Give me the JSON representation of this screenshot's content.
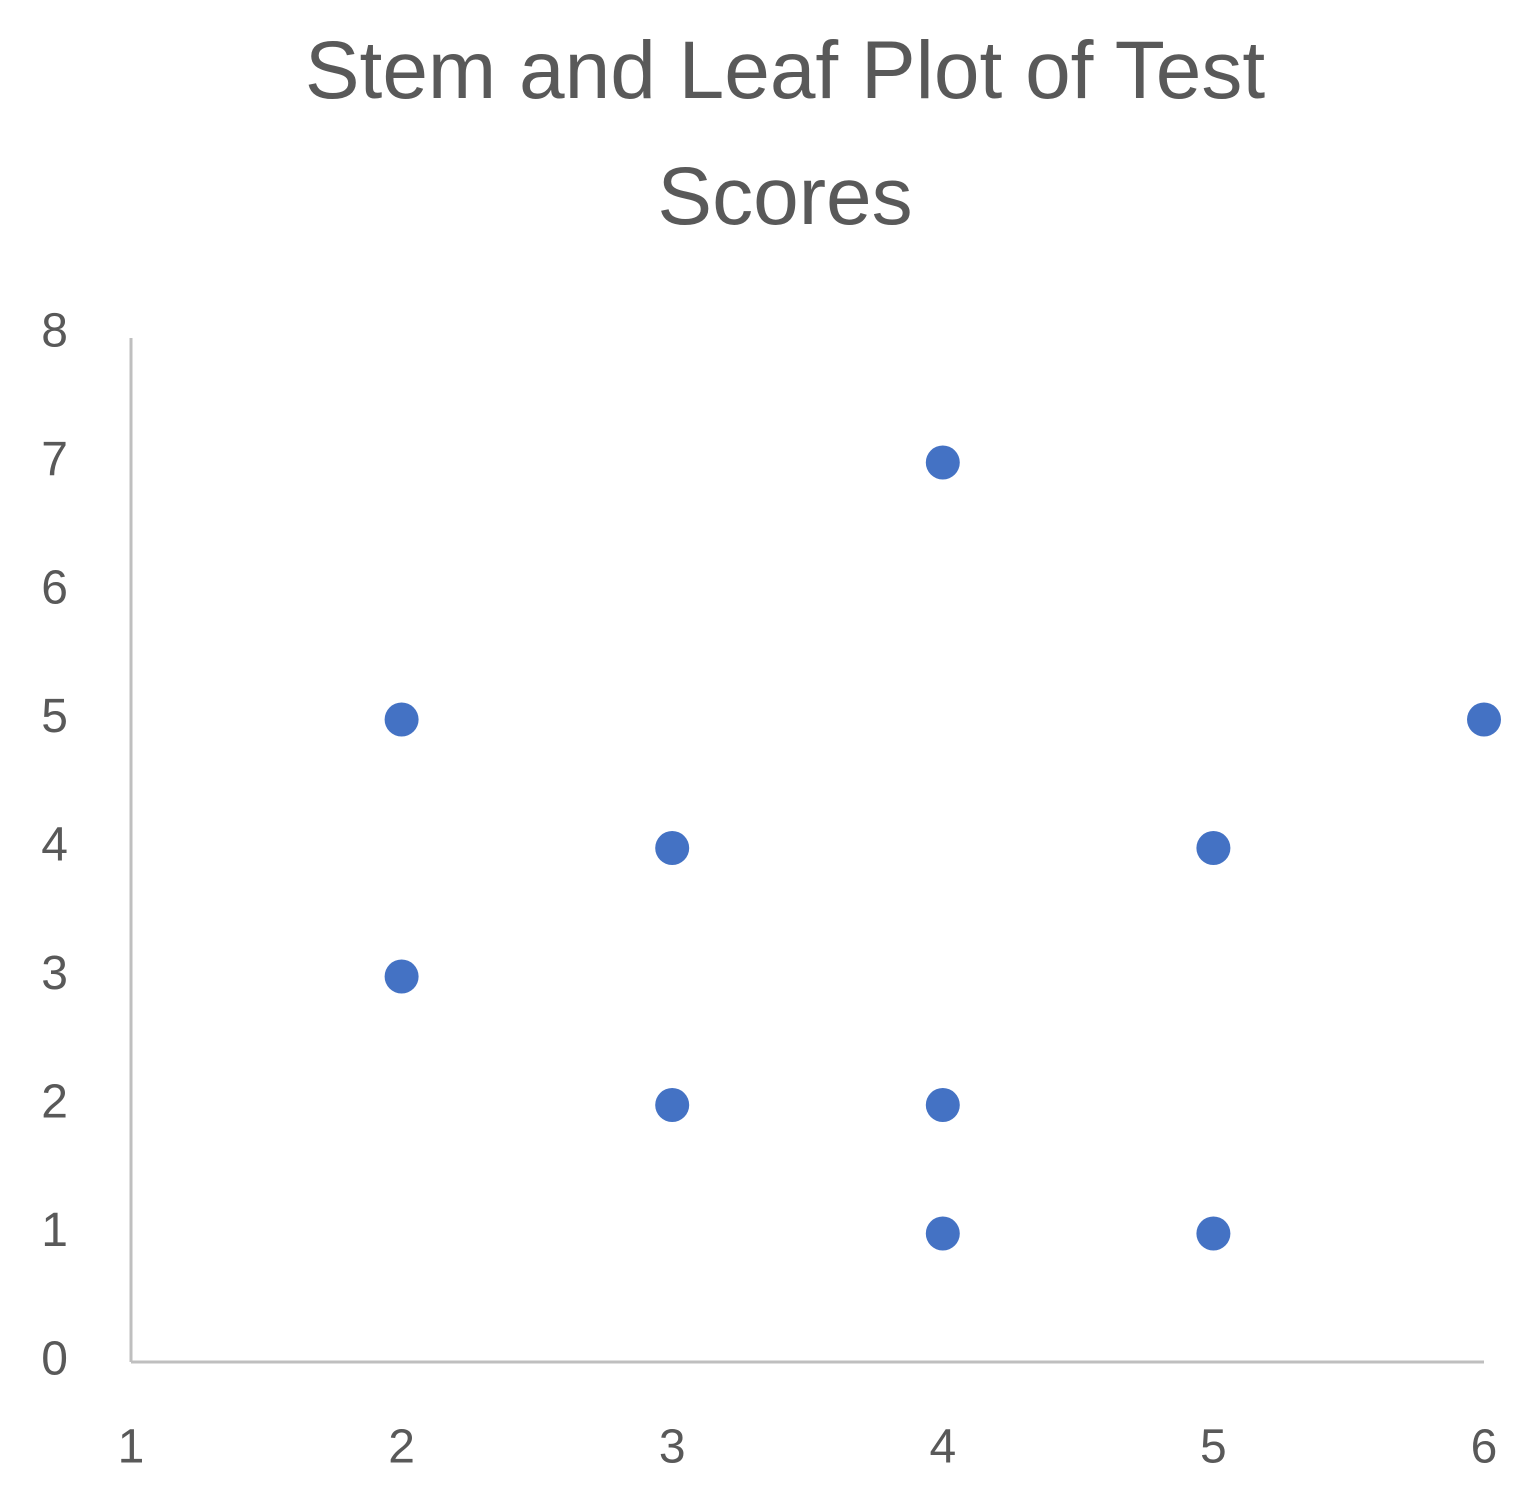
{
  "chart_data": {
    "type": "scatter",
    "title": "Stem and Leaf Plot of Test Scores",
    "x": [
      2,
      2,
      3,
      3,
      4,
      4,
      4,
      5,
      5,
      6
    ],
    "values": [
      5,
      3,
      4,
      2,
      7,
      2,
      1,
      4,
      1,
      5
    ],
    "color": "#4472c4",
    "xlim": [
      1,
      6
    ],
    "xticks": [
      1,
      2,
      3,
      4,
      5,
      6
    ],
    "ylim": [
      0,
      8
    ],
    "yticks": [
      0,
      1,
      2,
      3,
      4,
      5,
      6,
      7,
      8
    ],
    "grid": false
  }
}
